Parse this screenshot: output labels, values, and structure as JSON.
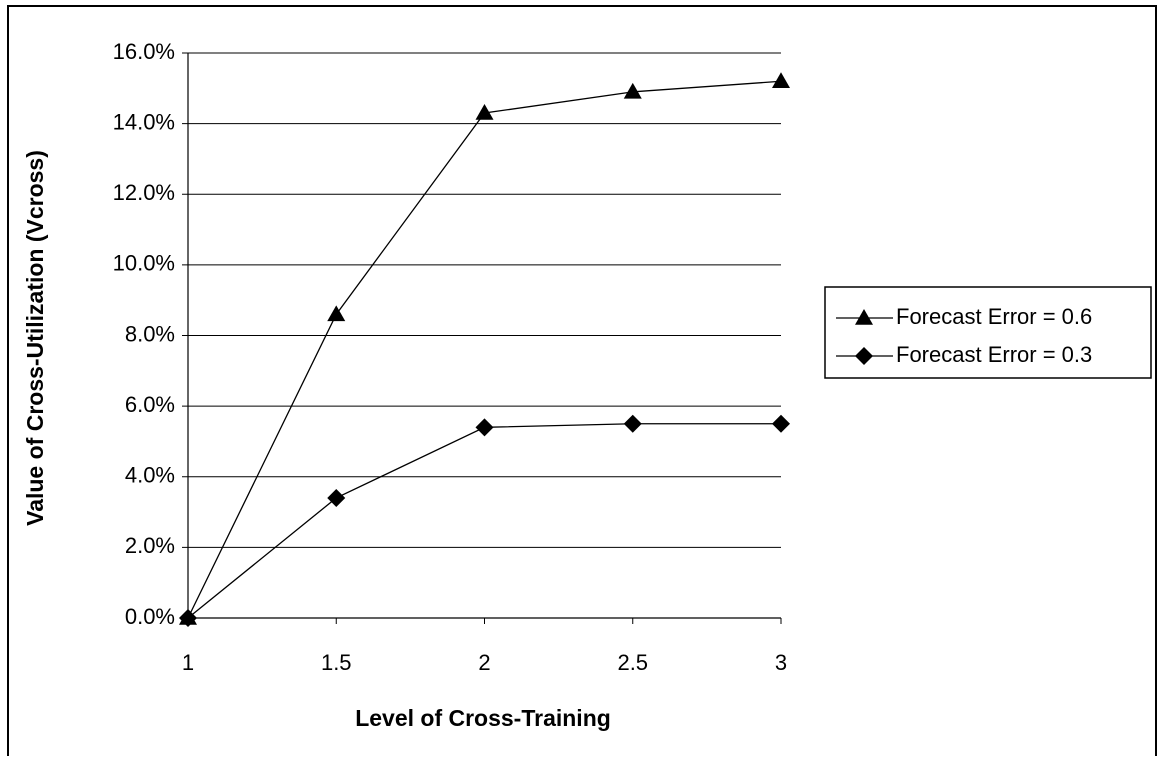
{
  "chart_data": {
    "type": "line",
    "xlabel": "Level of Cross-Training",
    "ylabel": "Value of Cross-Utilization (Vcross)",
    "x": [
      1,
      1.5,
      2,
      2.5,
      3
    ],
    "xlim": [
      1,
      3
    ],
    "x_tick_labels": [
      "1",
      "1.5",
      "2",
      "2.5",
      "3"
    ],
    "ylim": [
      0,
      0.16
    ],
    "y_ticks": [
      0,
      0.02,
      0.04,
      0.06,
      0.08,
      0.1,
      0.12,
      0.14,
      0.16
    ],
    "y_tick_labels": [
      "0.0%",
      "2.0%",
      "4.0%",
      "6.0%",
      "8.0%",
      "10.0%",
      "12.0%",
      "14.0%",
      "16.0%"
    ],
    "grid": "horizontal",
    "legend_position": "right",
    "series": [
      {
        "name": "Forecast Error = 0.6",
        "marker": "triangle",
        "color": "#000000",
        "values": [
          0,
          0.086,
          0.143,
          0.149,
          0.152
        ]
      },
      {
        "name": "Forecast Error = 0.3",
        "marker": "diamond",
        "color": "#000000",
        "values": [
          0,
          0.034,
          0.054,
          0.055,
          0.055
        ]
      }
    ]
  }
}
